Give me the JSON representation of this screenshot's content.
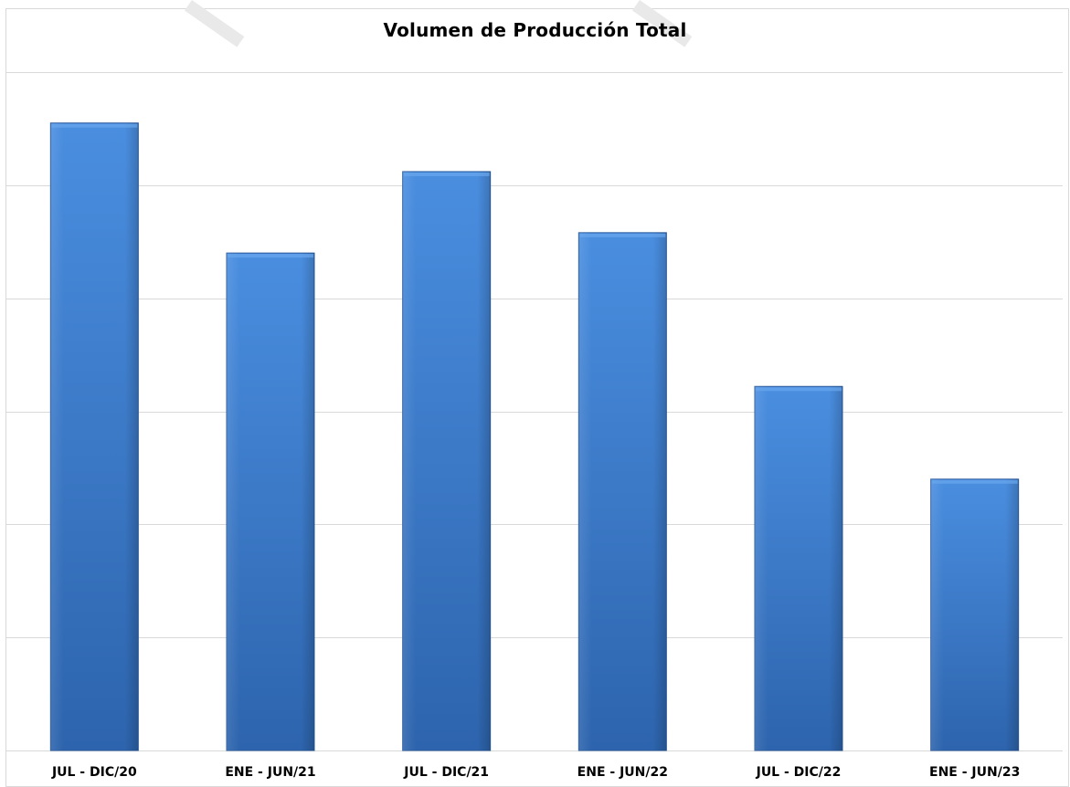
{
  "chart_data": {
    "type": "bar",
    "title": "Volumen de Producción Total",
    "categories": [
      "JUL - DIC/20",
      "ENE - JUN/21",
      "JUL - DIC/21",
      "ENE - JUN/22",
      "JUL - DIC/22",
      "ENE - JUN/23"
    ],
    "series": [
      {
        "values": [
          5.55,
          4.4,
          5.12,
          4.58,
          3.22,
          2.4
        ]
      }
    ],
    "ylim": [
      0,
      6
    ],
    "y_gridlines": [
      0,
      1,
      2,
      3,
      4,
      5,
      6
    ],
    "y_tick_labels_visible": false,
    "grid": true,
    "legend": "none",
    "colors": {
      "bar_light": "#4a8ee0",
      "bar_dark": "#2d64ad",
      "gridline": "#d9d9d9",
      "frame": "#d9d9d9"
    }
  }
}
